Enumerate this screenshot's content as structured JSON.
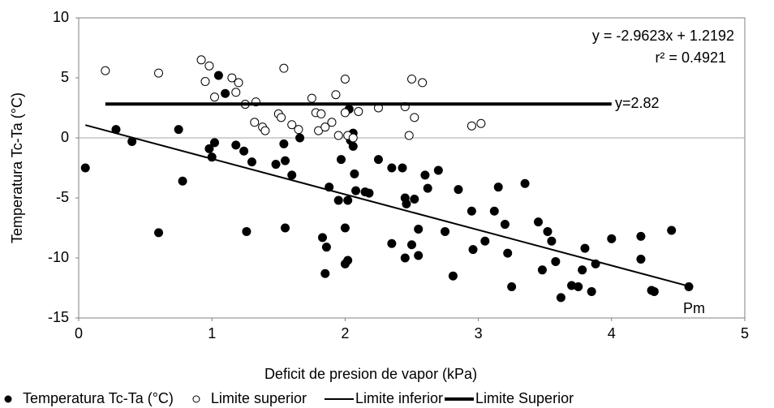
{
  "chart_data": {
    "type": "scatter",
    "x_label": "Deficit de presion de vapor (kPa)",
    "y_label": "Temperatura Tc-Ta (°C)",
    "xlim": [
      0,
      5
    ],
    "xticks": [
      0,
      1,
      2,
      3,
      4,
      5
    ],
    "ylim": [
      -15,
      10
    ],
    "yticks": [
      -15,
      -10,
      -5,
      0,
      5,
      10
    ],
    "annotations": [
      "y = -2.9623x + 1.2192",
      "r² = 0.4921",
      "y=2.82",
      "Pm"
    ],
    "series": [
      {
        "name": "Temperatura Tc-Ta (°C)",
        "kind": "points",
        "marker": "filled",
        "color": "#000000",
        "x": [
          0.05,
          0.28,
          0.4,
          0.6,
          0.75,
          0.78,
          0.98,
          1.0,
          1.02,
          1.05,
          1.1,
          1.18,
          1.24,
          1.26,
          1.3,
          1.48,
          1.54,
          1.55,
          1.55,
          1.6,
          1.66,
          1.83,
          1.85,
          1.86,
          1.88,
          1.95,
          1.97,
          2.0,
          2.0,
          2.02,
          2.02,
          2.03,
          2.04,
          2.06,
          2.06,
          2.07,
          2.08,
          2.15,
          2.18,
          2.25,
          2.35,
          2.35,
          2.43,
          2.45,
          2.45,
          2.46,
          2.5,
          2.52,
          2.55,
          2.55,
          2.6,
          2.62,
          2.7,
          2.75,
          2.81,
          2.85,
          2.95,
          2.96,
          3.05,
          3.12,
          3.15,
          3.2,
          3.22,
          3.25,
          3.35,
          3.45,
          3.48,
          3.52,
          3.55,
          3.58,
          3.62,
          3.7,
          3.75,
          3.78,
          3.8,
          3.85,
          3.88,
          4.0,
          4.22,
          4.22,
          4.3,
          4.32,
          4.45,
          4.58
        ],
        "values": [
          -2.5,
          0.7,
          -0.3,
          -7.9,
          0.7,
          -3.6,
          -0.9,
          -1.6,
          -0.4,
          5.2,
          3.7,
          -0.6,
          -1.1,
          -7.8,
          -2.0,
          -2.2,
          -0.5,
          -1.9,
          -7.5,
          -3.1,
          0.0,
          -8.3,
          -11.3,
          -9.1,
          -4.1,
          -5.2,
          -1.8,
          -10.5,
          -7.5,
          -10.2,
          -5.2,
          2.4,
          -0.2,
          0.4,
          -0.7,
          -3.0,
          -4.4,
          -4.5,
          -4.6,
          -1.8,
          -2.5,
          -8.8,
          -2.5,
          -10.0,
          -5.0,
          -5.5,
          -8.9,
          -5.1,
          -9.8,
          -7.6,
          -3.1,
          -4.2,
          -2.7,
          -7.8,
          -11.5,
          -4.3,
          -6.1,
          -9.3,
          -8.6,
          -6.1,
          -4.1,
          -7.2,
          -9.6,
          -12.4,
          -3.8,
          -7.0,
          -11.0,
          -7.8,
          -8.6,
          -10.3,
          -13.3,
          -12.3,
          -12.4,
          -11.0,
          -9.2,
          -12.8,
          -10.5,
          -8.4,
          -10.1,
          -8.2,
          -12.7,
          -12.8,
          -7.7,
          -12.4
        ]
      },
      {
        "name": "Limite superior",
        "kind": "points",
        "marker": "hollow",
        "color": "#000000",
        "x": [
          0.2,
          0.6,
          0.92,
          0.95,
          0.98,
          1.02,
          1.15,
          1.18,
          1.2,
          1.25,
          1.32,
          1.33,
          1.38,
          1.4,
          1.5,
          1.52,
          1.54,
          1.6,
          1.65,
          1.75,
          1.78,
          1.8,
          1.82,
          1.85,
          1.9,
          1.93,
          1.95,
          2.0,
          2.0,
          2.02,
          2.06,
          2.1,
          2.25,
          2.45,
          2.48,
          2.5,
          2.52,
          2.58,
          2.95,
          3.02
        ],
        "values": [
          5.6,
          5.4,
          6.5,
          4.7,
          6.0,
          3.4,
          5.0,
          3.8,
          4.6,
          2.8,
          1.3,
          3.0,
          0.9,
          0.6,
          2.0,
          1.7,
          5.8,
          1.1,
          0.7,
          3.3,
          2.1,
          0.6,
          2.0,
          0.9,
          1.3,
          3.6,
          0.2,
          4.9,
          2.1,
          0.2,
          0.0,
          2.2,
          2.5,
          2.6,
          0.2,
          4.9,
          1.7,
          4.6,
          1.0,
          1.2
        ]
      },
      {
        "name": "Limite inferior",
        "kind": "line",
        "width": 2,
        "color": "#000000",
        "x": [
          0.05,
          4.58
        ],
        "values": [
          1.07,
          -12.35
        ]
      },
      {
        "name": "Limite Superior",
        "kind": "line",
        "width": 4,
        "color": "#000000",
        "x": [
          0.2,
          4.0
        ],
        "values": [
          2.82,
          2.82
        ]
      }
    ]
  }
}
